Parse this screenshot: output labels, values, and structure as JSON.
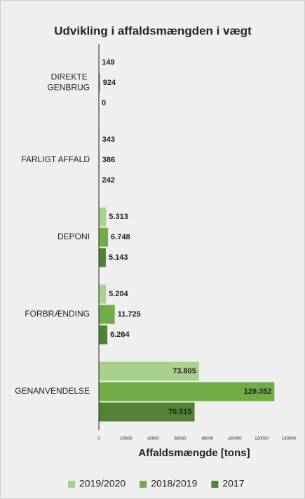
{
  "chart_data": {
    "type": "hbar",
    "title": "Udvikling i affaldsmængden i vægt",
    "x_label": "Affaldsmængde [tons]",
    "categories": [
      "DIREKTE GENBRUG",
      "FARLIGT AFFALD",
      "DEPONI",
      "FORBRÆNDING",
      "GENANVENDELSE"
    ],
    "series": [
      {
        "name": "2019/2020",
        "color": "#a9d18e",
        "values": [
          149,
          343,
          5313,
          5204,
          73805
        ],
        "value_labels": [
          "149",
          "343",
          "5.313",
          "5.204",
          "73.805"
        ]
      },
      {
        "name": "2018/2019",
        "color": "#70ad47",
        "values": [
          924,
          386,
          6748,
          11725,
          129352
        ],
        "value_labels": [
          "924",
          "386",
          "6.748",
          "11.725",
          "129.352"
        ]
      },
      {
        "name": "2017",
        "color": "#548235",
        "values": [
          0,
          242,
          5143,
          6264,
          70515
        ],
        "value_labels": [
          "0",
          "242",
          "5.143",
          "6.264",
          "70.515"
        ]
      }
    ],
    "xlim": [
      0,
      140000
    ],
    "xticks": [
      0,
      20000,
      40000,
      60000,
      80000,
      100000,
      120000,
      140000
    ],
    "grid": false,
    "legend": "bottom"
  }
}
